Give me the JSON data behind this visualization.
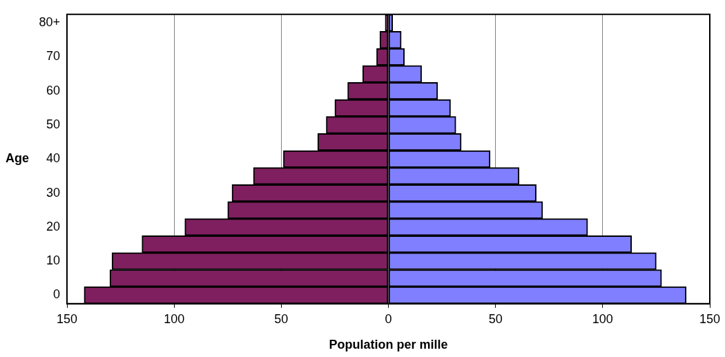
{
  "chart_data": {
    "type": "bar",
    "orientation": "horizontal",
    "stacked": true,
    "xlabel": "Population per mille",
    "ylabel": "Age",
    "categories": [
      "80+",
      null,
      "70",
      null,
      "60",
      null,
      "50",
      null,
      "40",
      null,
      "30",
      null,
      "20",
      null,
      "10",
      null,
      "0"
    ],
    "series": [
      {
        "color": "#7f1f5f",
        "values": [
          -1.5,
          -4,
          -5.5,
          -12,
          -19,
          -25,
          -29,
          -33,
          -49,
          -63,
          -73,
          -75,
          -95,
          -115,
          -129,
          -130,
          -142
        ]
      },
      {
        "color": "#7f7fff",
        "values": [
          2,
          6,
          7.5,
          15.5,
          23,
          29,
          31.5,
          34,
          47.5,
          61,
          69,
          72,
          93,
          113.5,
          125,
          127.5,
          139
        ]
      }
    ],
    "xlim": [
      -150,
      150
    ],
    "xticks": [
      {
        "value": -150,
        "label": "150"
      },
      {
        "value": -100,
        "label": "100"
      },
      {
        "value": -50,
        "label": "50"
      },
      0,
      50,
      100,
      150
    ],
    "grid": "x",
    "legend": false
  }
}
